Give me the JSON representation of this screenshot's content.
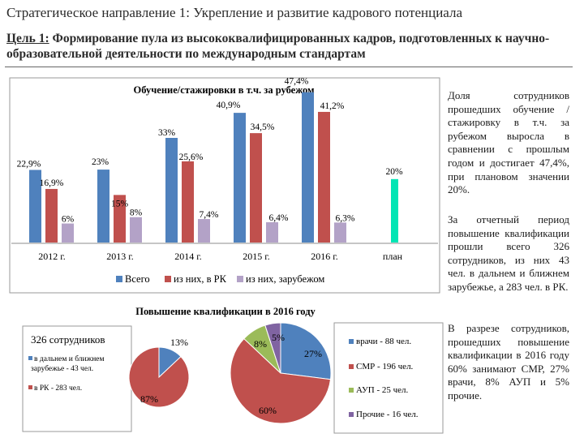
{
  "header": {
    "title": "Стратегическое направление 1: Укрепление и развитие кадрового потенциала",
    "goal_label": "Цель 1:",
    "goal_text": " Формирование пула из высококвалифицированных кадров, подготовленных к научно-образовательной деятельности по международным стандартам"
  },
  "side_texts": {
    "p1": "Доля сотрудников прошедших обучение /стажировку в т.ч. за рубежом выросла в сравнении с прошлым годом и достигает 47,4%, при плановом значении 20%.",
    "p2": "За отчетный период повышение квалификации прошли всего 326 сотрудников, из них 43 чел. в дальнем и ближнем зарубежье, а 283 чел. в РК.",
    "p3": "В разрезе сотрудников, прошедших повышение квалификации в 2016 году 60% занимают СМР, 27% врачи, 8% АУП и 5% прочие."
  },
  "colors": {
    "series_all": "#4f81bd",
    "series_rk": "#c0504d",
    "series_abroad": "#b3a2c7",
    "plan": "#00e5b4",
    "doctors": "#4f81bd",
    "smr": "#c0504d",
    "aup": "#9bbb59",
    "other": "#8064a2"
  },
  "chart_data": [
    {
      "type": "bar",
      "title": "Обучение/стажировки в т.ч. за рубежом",
      "categories": [
        "2012 г.",
        "2013 г.",
        "2014 г.",
        "2015 г.",
        "2016 г.",
        "план"
      ],
      "series": [
        {
          "name": "Всего",
          "values": [
            22.9,
            23,
            33,
            40.9,
            47.4,
            null
          ],
          "labels": [
            "22,9%",
            "23%",
            "33%",
            "40,9%",
            "47,4%",
            null
          ]
        },
        {
          "name": "из них, в РК",
          "values": [
            16.9,
            15,
            25.6,
            34.5,
            41.2,
            null
          ],
          "labels": [
            "16,9%",
            "15%",
            "25,6%",
            "34,5%",
            "41,2%",
            null
          ]
        },
        {
          "name": "из них, зарубежом",
          "values": [
            6,
            8,
            7.4,
            6.4,
            6.3,
            null
          ],
          "labels": [
            "6%",
            "8%",
            "7,4%",
            "6,4%",
            "6,3%",
            null
          ]
        }
      ],
      "plan": {
        "category": "план",
        "value": 20,
        "label": "20%"
      },
      "ylim": [
        0,
        55
      ],
      "grid": false,
      "legend": "bottom"
    },
    {
      "type": "pie",
      "title": "Повышение квалификации в 2016 году",
      "subtitle": "326 сотрудников",
      "charts": [
        {
          "slices": [
            {
              "name": "в дальнем и ближнем зарубежье - 43 чел.",
              "value": 13,
              "label": "13%"
            },
            {
              "name": "в РК - 283 чел.",
              "value": 87,
              "label": "87%"
            }
          ]
        },
        {
          "slices": [
            {
              "name": "врачи - 88 чел.",
              "value": 27,
              "label": "27%"
            },
            {
              "name": "СМР - 196 чел.",
              "value": 60,
              "label": "60%"
            },
            {
              "name": "АУП - 25 чел.",
              "value": 8,
              "label": "8%"
            },
            {
              "name": "Прочие - 16 чел.",
              "value": 5,
              "label": "5%"
            }
          ]
        }
      ],
      "legend": "left / right"
    }
  ]
}
